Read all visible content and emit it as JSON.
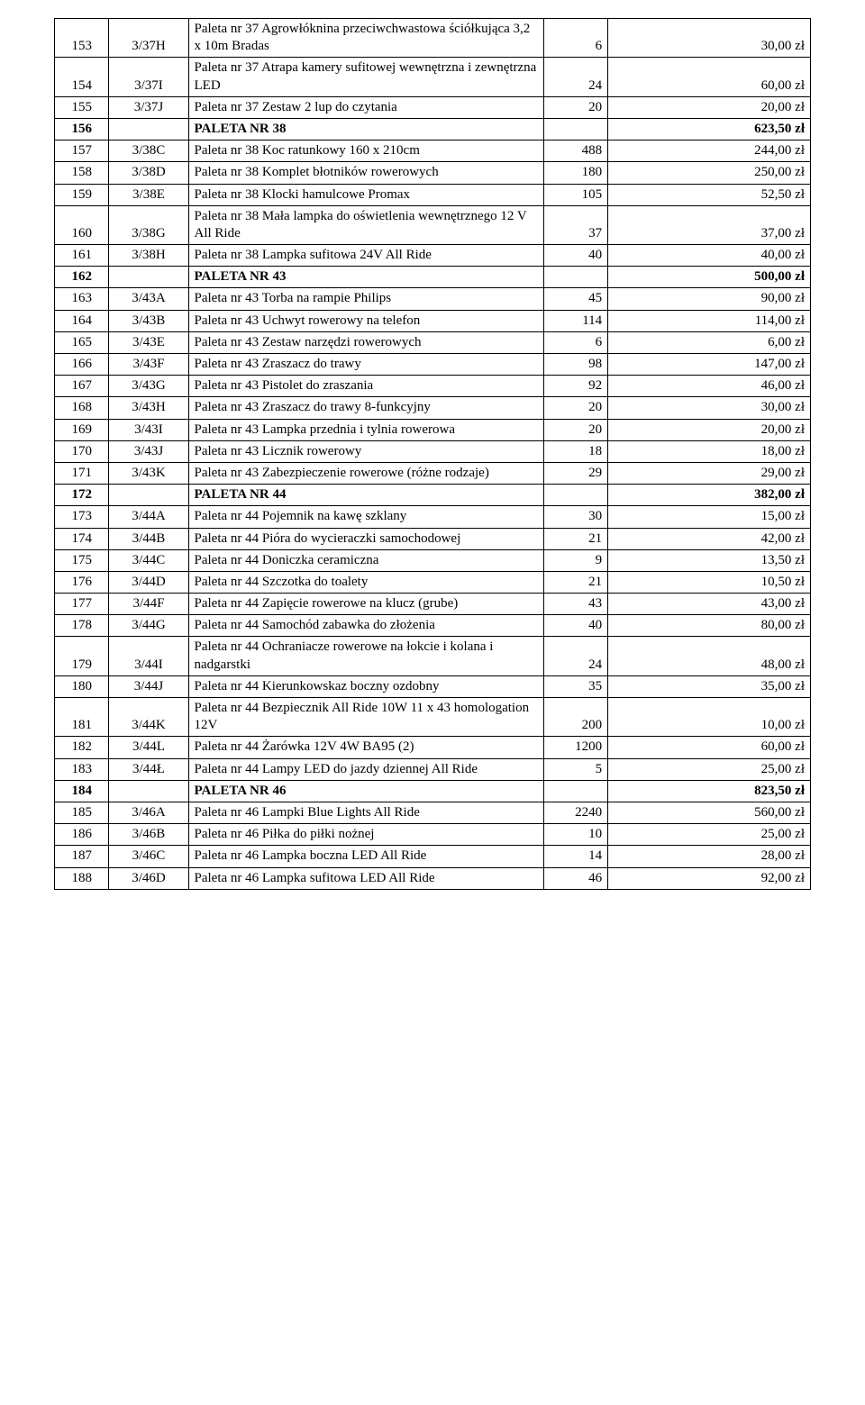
{
  "rows": [
    {
      "n": "153",
      "code": "3/37H",
      "desc": "Paleta nr 37 Agrowłóknina przeciwchwastowa ściółkująca 3,2 x 10m Bradas",
      "qty": "6",
      "price": "30,00 zł"
    },
    {
      "n": "154",
      "code": "3/37I",
      "desc": "Paleta nr 37 Atrapa kamery sufitowej wewnętrzna i zewnętrzna LED",
      "qty": "24",
      "price": "60,00 zł"
    },
    {
      "n": "155",
      "code": "3/37J",
      "desc": "Paleta nr 37 Zestaw 2 lup do czytania",
      "qty": "20",
      "price": "20,00 zł"
    },
    {
      "n": "156",
      "code": "",
      "desc": "PALETA NR 38",
      "qty": "",
      "price": "623,50 zł",
      "bold": true
    },
    {
      "n": "157",
      "code": "3/38C",
      "desc": "Paleta nr 38 Koc ratunkowy 160 x 210cm",
      "qty": "488",
      "price": "244,00 zł"
    },
    {
      "n": "158",
      "code": "3/38D",
      "desc": "Paleta nr 38 Komplet błotników rowerowych",
      "qty": "180",
      "price": "250,00 zł"
    },
    {
      "n": "159",
      "code": "3/38E",
      "desc": "Paleta nr 38 Klocki hamulcowe Promax",
      "qty": "105",
      "price": "52,50 zł"
    },
    {
      "n": "160",
      "code": "3/38G",
      "desc": "Paleta nr 38 Mała lampka do oświetlenia wewnętrznego 12 V All Ride",
      "qty": "37",
      "price": "37,00 zł"
    },
    {
      "n": "161",
      "code": "3/38H",
      "desc": "Paleta nr 38 Lampka sufitowa 24V All Ride",
      "qty": "40",
      "price": "40,00 zł"
    },
    {
      "n": "162",
      "code": "",
      "desc": "PALETA NR 43",
      "qty": "",
      "price": "500,00 zł",
      "bold": true
    },
    {
      "n": "163",
      "code": "3/43A",
      "desc": "Paleta nr 43 Torba na rampie Philips",
      "qty": "45",
      "price": "90,00 zł"
    },
    {
      "n": "164",
      "code": "3/43B",
      "desc": "Paleta nr 43 Uchwyt rowerowy na telefon",
      "qty": "114",
      "price": "114,00 zł"
    },
    {
      "n": "165",
      "code": "3/43E",
      "desc": "Paleta nr 43 Zestaw narzędzi rowerowych",
      "qty": "6",
      "price": "6,00 zł"
    },
    {
      "n": "166",
      "code": "3/43F",
      "desc": "Paleta nr 43 Zraszacz do trawy",
      "qty": "98",
      "price": "147,00 zł"
    },
    {
      "n": "167",
      "code": "3/43G",
      "desc": "Paleta nr 43 Pistolet do zraszania",
      "qty": "92",
      "price": "46,00 zł"
    },
    {
      "n": "168",
      "code": "3/43H",
      "desc": "Paleta nr 43 Zraszacz do trawy 8-funkcyjny",
      "qty": "20",
      "price": "30,00 zł"
    },
    {
      "n": "169",
      "code": "3/43I",
      "desc": "Paleta nr 43 Lampka przednia i tylnia rowerowa",
      "qty": "20",
      "price": "20,00 zł"
    },
    {
      "n": "170",
      "code": "3/43J",
      "desc": "Paleta nr 43 Licznik rowerowy",
      "qty": "18",
      "price": "18,00 zł"
    },
    {
      "n": "171",
      "code": "3/43K",
      "desc": "Paleta nr 43 Zabezpieczenie rowerowe (różne rodzaje)",
      "qty": "29",
      "price": "29,00 zł"
    },
    {
      "n": "172",
      "code": "",
      "desc": "PALETA NR 44",
      "qty": "",
      "price": "382,00 zł",
      "bold": true
    },
    {
      "n": "173",
      "code": "3/44A",
      "desc": "Paleta nr 44 Pojemnik na kawę szklany",
      "qty": "30",
      "price": "15,00 zł"
    },
    {
      "n": "174",
      "code": "3/44B",
      "desc": "Paleta nr 44 Pióra do wycieraczki samochodowej",
      "qty": "21",
      "price": "42,00 zł"
    },
    {
      "n": "175",
      "code": "3/44C",
      "desc": "Paleta nr 44 Doniczka ceramiczna",
      "qty": "9",
      "price": "13,50 zł"
    },
    {
      "n": "176",
      "code": "3/44D",
      "desc": "Paleta nr 44 Szczotka do toalety",
      "qty": "21",
      "price": "10,50 zł"
    },
    {
      "n": "177",
      "code": "3/44F",
      "desc": "Paleta nr 44 Zapięcie rowerowe na klucz (grube)",
      "qty": "43",
      "price": "43,00 zł"
    },
    {
      "n": "178",
      "code": "3/44G",
      "desc": "Paleta nr 44 Samochód zabawka do złożenia",
      "qty": "40",
      "price": "80,00 zł"
    },
    {
      "n": "179",
      "code": "3/44I",
      "desc": "Paleta nr 44 Ochraniacze rowerowe na łokcie i kolana i nadgarstki",
      "qty": "24",
      "price": "48,00 zł"
    },
    {
      "n": "180",
      "code": "3/44J",
      "desc": "Paleta nr 44 Kierunkowskaz boczny ozdobny",
      "qty": "35",
      "price": "35,00 zł"
    },
    {
      "n": "181",
      "code": "3/44K",
      "desc": "Paleta nr 44 Bezpiecznik All Ride 10W 11 x 43 homologation 12V",
      "qty": "200",
      "price": "10,00 zł"
    },
    {
      "n": "182",
      "code": "3/44L",
      "desc": "Paleta nr 44 Żarówka 12V 4W BA95 (2)",
      "qty": "1200",
      "price": "60,00 zł"
    },
    {
      "n": "183",
      "code": "3/44Ł",
      "desc": "Paleta nr 44 Lampy LED do jazdy dziennej All Ride",
      "qty": "5",
      "price": "25,00 zł"
    },
    {
      "n": "184",
      "code": "",
      "desc": "PALETA NR 46",
      "qty": "",
      "price": "823,50 zł",
      "bold": true
    },
    {
      "n": "185",
      "code": "3/46A",
      "desc": "Paleta nr 46 Lampki Blue Lights All Ride",
      "qty": "2240",
      "price": "560,00 zł"
    },
    {
      "n": "186",
      "code": "3/46B",
      "desc": "Paleta nr 46 Piłka do piłki nożnej",
      "qty": "10",
      "price": "25,00 zł"
    },
    {
      "n": "187",
      "code": "3/46C",
      "desc": "Paleta nr 46 Lampka boczna LED All Ride",
      "qty": "14",
      "price": "28,00 zł"
    },
    {
      "n": "188",
      "code": "3/46D",
      "desc": "Paleta nr 46 Lampka sufitowa LED All Ride",
      "qty": "46",
      "price": "92,00 zł"
    }
  ]
}
